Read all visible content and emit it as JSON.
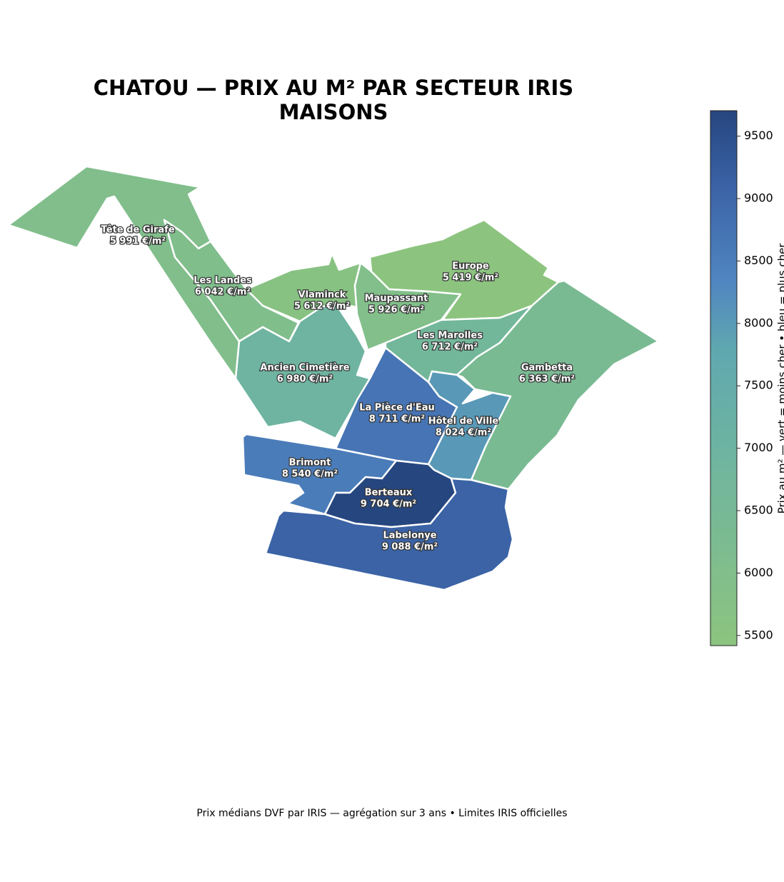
{
  "chart_data": {
    "type": "choropleth",
    "title": [
      "CHATOU — PRIX AU M² PAR SECTEUR IRIS",
      "MAISONS"
    ],
    "regions": [
      "Tête de Girafe",
      "Les Landes",
      "Vlaminck",
      "Maupassant",
      "Europe",
      "Ancien Cimetière",
      "Les Marolles",
      "Gambetta",
      "La Pièce d'Eau",
      "Hôtel de Ville",
      "Brimont",
      "Berteaux",
      "Labelonye"
    ],
    "values": [
      5991,
      6042,
      5612,
      5926,
      5419,
      6980,
      6712,
      6363,
      8711,
      8024,
      8540,
      9704,
      9088
    ],
    "value_labels": [
      "5 991 €/m²",
      "6 042 €/m²",
      "5 612 €/m²",
      "5 926 €/m²",
      "5 419 €/m²",
      "6 980 €/m²",
      "6 712 €/m²",
      "6 363 €/m²",
      "8 711 €/m²",
      "8 024 €/m²",
      "8 540 €/m²",
      "9 704 €/m²",
      "9 088 €/m²"
    ],
    "clim": [
      5419,
      9704
    ],
    "cticks": [
      5500,
      6000,
      6500,
      7000,
      7500,
      8000,
      8500,
      9000,
      9500
    ],
    "colorbar_label": "Prix au m² — vert = moins cher • bleu = plus cher",
    "footer": "Prix médians DVF par IRIS — agrégation sur 3 ans • Limites IRIS officielles"
  }
}
